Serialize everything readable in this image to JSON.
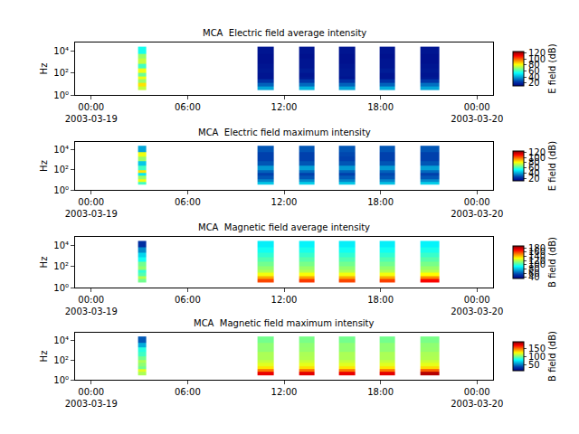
{
  "chart_data": [
    {
      "type": "heatmap",
      "title": "MCA  Electric field average intensity",
      "ylabel": "Hz",
      "colorbar_label": "E field (dB)",
      "log": "y",
      "x": [
        "2003-03-19 02:55",
        "2003-03-19 03:25",
        "2003-03-19 10:20",
        "2003-03-19 11:20",
        "2003-03-19 12:55",
        "2003-03-19 13:55",
        "2003-03-19 15:25",
        "2003-03-19 16:25",
        "2003-03-19 17:55",
        "2003-03-19 18:55",
        "2003-03-19 20:30",
        "2003-03-19 21:40"
      ],
      "y": [
        3,
        6,
        12,
        25,
        50,
        100,
        250,
        700,
        2000,
        6000,
        25000
      ],
      "z": [
        [
          75,
          null,
          40,
          null,
          42,
          null,
          40,
          null,
          41,
          null,
          40
        ],
        [
          85,
          null,
          30,
          null,
          31,
          null,
          30,
          null,
          30,
          null,
          32
        ],
        [
          70,
          null,
          22,
          null,
          23,
          null,
          22,
          null,
          22,
          null,
          23
        ],
        [
          80,
          null,
          15,
          null,
          16,
          null,
          15,
          null,
          15,
          null,
          16
        ],
        [
          65,
          null,
          15,
          null,
          15,
          null,
          16,
          null,
          15,
          null,
          15
        ],
        [
          80,
          null,
          16,
          null,
          17,
          null,
          16,
          null,
          17,
          null,
          16
        ],
        [
          60,
          null,
          15,
          null,
          15,
          null,
          15,
          null,
          15,
          null,
          15
        ],
        [
          75,
          null,
          14,
          null,
          15,
          null,
          14,
          null,
          15,
          null,
          14
        ],
        [
          70,
          null,
          14,
          null,
          14,
          null,
          14,
          null,
          14,
          null,
          14
        ],
        [
          55,
          null,
          15,
          null,
          15,
          null,
          15,
          null,
          15,
          null,
          15
        ]
      ],
      "xlim": [
        "2003-03-18 23:00",
        "2003-03-20 01:00"
      ],
      "xticks": [
        {
          "value": "2003-03-19 00:00",
          "label": "00:00\n2003-03-19"
        },
        {
          "value": "2003-03-19 06:00",
          "label": "06:00"
        },
        {
          "value": "2003-03-19 12:00",
          "label": "12:00"
        },
        {
          "value": "2003-03-19 18:00",
          "label": "18:00"
        },
        {
          "value": "2003-03-20 00:00",
          "label": "00:00\n2003-03-20"
        }
      ],
      "ylim": [
        1,
        60000
      ],
      "yticks": [
        {
          "value": 1,
          "label": "10⁰"
        },
        {
          "value": 100,
          "label": "10²"
        },
        {
          "value": 10000,
          "label": "10⁴"
        }
      ],
      "zlim": [
        10,
        125
      ],
      "zticks": [
        20,
        40,
        60,
        80,
        100,
        120
      ]
    },
    {
      "type": "heatmap",
      "title": "MCA  Electric field maximum intensity",
      "ylabel": "Hz",
      "colorbar_label": "E field (dB)",
      "log": "y",
      "x": [
        "2003-03-19 02:55",
        "2003-03-19 03:25",
        "2003-03-19 10:20",
        "2003-03-19 11:20",
        "2003-03-19 12:55",
        "2003-03-19 13:55",
        "2003-03-19 15:25",
        "2003-03-19 16:25",
        "2003-03-19 17:55",
        "2003-03-19 18:55",
        "2003-03-19 20:30",
        "2003-03-19 21:40"
      ],
      "y": [
        3,
        6,
        12,
        25,
        50,
        100,
        250,
        700,
        2000,
        6000,
        25000
      ],
      "z": [
        [
          60,
          null,
          45,
          null,
          46,
          null,
          45,
          null,
          44,
          null,
          46
        ],
        [
          80,
          null,
          35,
          null,
          36,
          null,
          35,
          null,
          35,
          null,
          36
        ],
        [
          70,
          null,
          28,
          null,
          28,
          null,
          29,
          null,
          28,
          null,
          28
        ],
        [
          50,
          null,
          25,
          null,
          25,
          null,
          25,
          null,
          26,
          null,
          25
        ],
        [
          85,
          null,
          30,
          null,
          31,
          null,
          30,
          null,
          30,
          null,
          31
        ],
        [
          60,
          null,
          38,
          null,
          39,
          null,
          38,
          null,
          38,
          null,
          39
        ],
        [
          45,
          null,
          28,
          null,
          28,
          null,
          28,
          null,
          28,
          null,
          28
        ],
        [
          70,
          null,
          25,
          null,
          25,
          null,
          25,
          null,
          25,
          null,
          25
        ],
        [
          80,
          null,
          25,
          null,
          25,
          null,
          26,
          null,
          25,
          null,
          25
        ],
        [
          40,
          null,
          28,
          null,
          28,
          null,
          28,
          null,
          28,
          null,
          28
        ]
      ],
      "xlim": [
        "2003-03-18 23:00",
        "2003-03-20 01:00"
      ],
      "xticks": [
        {
          "value": "2003-03-19 00:00",
          "label": "00:00\n2003-03-19"
        },
        {
          "value": "2003-03-19 06:00",
          "label": "06:00"
        },
        {
          "value": "2003-03-19 12:00",
          "label": "12:00"
        },
        {
          "value": "2003-03-19 18:00",
          "label": "18:00"
        },
        {
          "value": "2003-03-20 00:00",
          "label": "00:00\n2003-03-20"
        }
      ],
      "ylim": [
        1,
        60000
      ],
      "yticks": [
        {
          "value": 1,
          "label": "10⁰"
        },
        {
          "value": 100,
          "label": "10²"
        },
        {
          "value": 10000,
          "label": "10⁴"
        }
      ],
      "zlim": [
        10,
        125
      ],
      "zticks": [
        20,
        40,
        60,
        80,
        100,
        120
      ]
    },
    {
      "type": "heatmap",
      "title": "MCA  Magnetic field average intensity",
      "ylabel": "Hz",
      "colorbar_label": "B field (dB)",
      "log": "y",
      "x": [
        "2003-03-19 02:55",
        "2003-03-19 03:25",
        "2003-03-19 10:20",
        "2003-03-19 11:20",
        "2003-03-19 12:55",
        "2003-03-19 13:55",
        "2003-03-19 15:25",
        "2003-03-19 16:25",
        "2003-03-19 17:55",
        "2003-03-19 18:55",
        "2003-03-19 20:30",
        "2003-03-19 21:40"
      ],
      "y": [
        3,
        6,
        12,
        25,
        50,
        100,
        250,
        700,
        2000,
        6000,
        25000
      ],
      "z": [
        [
          110,
          null,
          160,
          null,
          162,
          null,
          160,
          null,
          161,
          null,
          170
        ],
        [
          120,
          null,
          145,
          null,
          146,
          null,
          145,
          null,
          145,
          null,
          150
        ],
        [
          105,
          null,
          130,
          null,
          131,
          null,
          130,
          null,
          130,
          null,
          132
        ],
        [
          100,
          null,
          120,
          null,
          121,
          null,
          120,
          null,
          120,
          null,
          121
        ],
        [
          115,
          null,
          115,
          null,
          116,
          null,
          115,
          null,
          115,
          null,
          116
        ],
        [
          110,
          null,
          110,
          null,
          111,
          null,
          110,
          null,
          110,
          null,
          111
        ],
        [
          95,
          null,
          105,
          null,
          106,
          null,
          105,
          null,
          105,
          null,
          106
        ],
        [
          85,
          null,
          100,
          null,
          101,
          null,
          100,
          null,
          100,
          null,
          101
        ],
        [
          70,
          null,
          95,
          null,
          96,
          null,
          95,
          null,
          95,
          null,
          96
        ],
        [
          50,
          null,
          90,
          null,
          91,
          null,
          90,
          null,
          90,
          null,
          91
        ]
      ],
      "xlim": [
        "2003-03-18 23:00",
        "2003-03-20 01:00"
      ],
      "xticks": [
        {
          "value": "2003-03-19 00:00",
          "label": "00:00\n2003-03-19"
        },
        {
          "value": "2003-03-19 06:00",
          "label": "06:00"
        },
        {
          "value": "2003-03-19 12:00",
          "label": "12:00"
        },
        {
          "value": "2003-03-19 18:00",
          "label": "18:00"
        },
        {
          "value": "2003-03-20 00:00",
          "label": "00:00\n2003-03-20"
        }
      ],
      "ylim": [
        1,
        60000
      ],
      "yticks": [
        {
          "value": 1,
          "label": "10⁰"
        },
        {
          "value": 100,
          "label": "10²"
        },
        {
          "value": 10000,
          "label": "10⁴"
        }
      ],
      "zlim": [
        35,
        190
      ],
      "zticks": [
        40,
        60,
        80,
        100,
        120,
        140,
        160,
        180
      ]
    },
    {
      "type": "heatmap",
      "title": "MCA  Magnetic field maximum intensity",
      "ylabel": "Hz",
      "colorbar_label": "B field (dB)",
      "log": "y",
      "x": [
        "2003-03-19 02:55",
        "2003-03-19 03:25",
        "2003-03-19 10:20",
        "2003-03-19 11:20",
        "2003-03-19 12:55",
        "2003-03-19 13:55",
        "2003-03-19 15:25",
        "2003-03-19 16:25",
        "2003-03-19 17:55",
        "2003-03-19 18:55",
        "2003-03-19 20:30",
        "2003-03-19 21:40"
      ],
      "y": [
        3,
        6,
        12,
        25,
        50,
        100,
        250,
        700,
        2000,
        6000,
        25000
      ],
      "z": [
        [
          110,
          null,
          175,
          null,
          176,
          null,
          175,
          null,
          176,
          null,
          185
        ],
        [
          120,
          null,
          150,
          null,
          151,
          null,
          150,
          null,
          150,
          null,
          155
        ],
        [
          100,
          null,
          130,
          null,
          131,
          null,
          130,
          null,
          130,
          null,
          132
        ],
        [
          105,
          null,
          120,
          null,
          121,
          null,
          120,
          null,
          120,
          null,
          121
        ],
        [
          110,
          null,
          115,
          null,
          116,
          null,
          115,
          null,
          115,
          null,
          116
        ],
        [
          100,
          null,
          110,
          null,
          111,
          null,
          110,
          null,
          110,
          null,
          111
        ],
        [
          90,
          null,
          110,
          null,
          110,
          null,
          110,
          null,
          110,
          null,
          110
        ],
        [
          85,
          null,
          105,
          null,
          106,
          null,
          105,
          null,
          105,
          null,
          106
        ],
        [
          60,
          null,
          105,
          null,
          105,
          null,
          105,
          null,
          105,
          null,
          105
        ],
        [
          40,
          null,
          100,
          null,
          101,
          null,
          100,
          null,
          100,
          null,
          101
        ]
      ],
      "xlim": [
        "2003-03-18 23:00",
        "2003-03-20 01:00"
      ],
      "xticks": [
        {
          "value": "2003-03-19 00:00",
          "label": "00:00\n2003-03-19"
        },
        {
          "value": "2003-03-19 06:00",
          "label": "06:00"
        },
        {
          "value": "2003-03-19 12:00",
          "label": "12:00"
        },
        {
          "value": "2003-03-19 18:00",
          "label": "18:00"
        },
        {
          "value": "2003-03-20 00:00",
          "label": "00:00\n2003-03-20"
        }
      ],
      "ylim": [
        1,
        60000
      ],
      "yticks": [
        {
          "value": 1,
          "label": "10⁰"
        },
        {
          "value": 100,
          "label": "10²"
        },
        {
          "value": 10000,
          "label": "10⁴"
        }
      ],
      "zlim": [
        10,
        195
      ],
      "zticks": [
        50,
        100,
        150
      ]
    }
  ]
}
